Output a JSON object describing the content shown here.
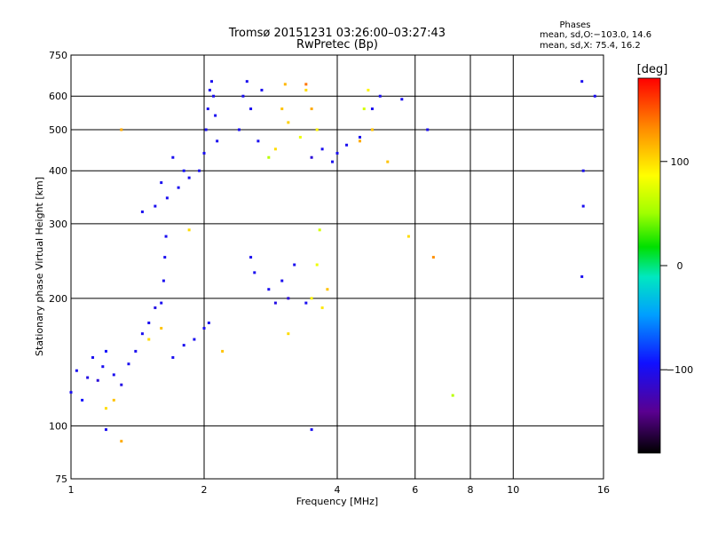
{
  "chart_data": {
    "type": "scatter",
    "title": "Tromsø 20151231 03:26:00–03:27:43",
    "subtitle": "RwPretec (Bp)",
    "stats_header": "Phases",
    "stats_o": "mean, sd,O:−103.0, 14.6",
    "stats_x": "mean, sd,X:  75.4, 16.2",
    "xlabel": "Frequency [MHz]",
    "ylabel": "Stationary phase Virtual Height [km]",
    "xscale": "log",
    "yscale": "log",
    "xlim": [
      1,
      16
    ],
    "ylim": [
      75,
      750
    ],
    "xticks": [
      1,
      2,
      4,
      6,
      8,
      10,
      16
    ],
    "xtick_labels": [
      "1",
      "2",
      "4",
      "6",
      "8",
      "10",
      "16"
    ],
    "yticks": [
      75,
      100,
      200,
      300,
      400,
      500,
      600,
      750
    ],
    "ytick_labels": [
      "75",
      "100",
      "200",
      "300",
      "400",
      "500",
      "600",
      "750"
    ],
    "grid": true,
    "colorbar": {
      "label": "[deg]",
      "range": [
        -180,
        180
      ],
      "ticks": [
        100,
        0,
        -100
      ],
      "tick_labels": [
        "100",
        "0",
        "−100"
      ]
    },
    "series": [
      {
        "points": [
          [
            1.0,
            120,
            -100
          ],
          [
            1.03,
            135,
            -100
          ],
          [
            1.06,
            115,
            -95
          ],
          [
            1.09,
            130,
            -105
          ],
          [
            1.12,
            145,
            -100
          ],
          [
            1.15,
            128,
            -110
          ],
          [
            1.18,
            138,
            -100
          ],
          [
            1.2,
            150,
            -95
          ],
          [
            1.25,
            132,
            -100
          ],
          [
            1.3,
            125,
            -105
          ],
          [
            1.35,
            140,
            -100
          ],
          [
            1.4,
            150,
            -100
          ],
          [
            1.45,
            165,
            -100
          ],
          [
            1.5,
            175,
            -100
          ],
          [
            1.55,
            190,
            -105
          ],
          [
            1.6,
            195,
            -100
          ],
          [
            1.62,
            220,
            -100
          ],
          [
            1.63,
            250,
            -100
          ],
          [
            1.64,
            280,
            -100
          ],
          [
            1.7,
            145,
            -100
          ],
          [
            1.8,
            155,
            -100
          ],
          [
            1.9,
            160,
            -100
          ],
          [
            2.0,
            170,
            -100
          ],
          [
            2.05,
            175,
            -100
          ],
          [
            1.45,
            320,
            -100
          ],
          [
            1.55,
            330,
            -100
          ],
          [
            1.65,
            345,
            -100
          ],
          [
            1.75,
            365,
            -100
          ],
          [
            1.85,
            385,
            -100
          ],
          [
            1.95,
            400,
            -100
          ],
          [
            2.0,
            440,
            -100
          ],
          [
            2.02,
            500,
            -100
          ],
          [
            2.04,
            560,
            -100
          ],
          [
            2.06,
            620,
            -100
          ],
          [
            2.08,
            650,
            -100
          ],
          [
            2.1,
            600,
            -100
          ],
          [
            2.12,
            540,
            -100
          ],
          [
            2.14,
            470,
            -100
          ],
          [
            1.7,
            430,
            -100
          ],
          [
            1.8,
            400,
            -95
          ],
          [
            1.6,
            375,
            -100
          ],
          [
            2.4,
            500,
            -100
          ],
          [
            2.45,
            600,
            -100
          ],
          [
            2.5,
            650,
            -100
          ],
          [
            2.55,
            560,
            -100
          ],
          [
            2.65,
            470,
            -100
          ],
          [
            2.7,
            620,
            -100
          ],
          [
            2.55,
            250,
            -100
          ],
          [
            2.6,
            230,
            -100
          ],
          [
            2.8,
            210,
            -100
          ],
          [
            2.9,
            195,
            -105
          ],
          [
            3.0,
            220,
            -100
          ],
          [
            3.1,
            200,
            -110
          ],
          [
            3.2,
            240,
            -100
          ],
          [
            3.4,
            195,
            -100
          ],
          [
            3.5,
            430,
            -110
          ],
          [
            3.7,
            450,
            -100
          ],
          [
            3.9,
            420,
            -100
          ],
          [
            4.0,
            440,
            -100
          ],
          [
            4.2,
            460,
            -100
          ],
          [
            4.5,
            480,
            -100
          ],
          [
            4.8,
            560,
            -100
          ],
          [
            5.0,
            600,
            -100
          ],
          [
            5.6,
            590,
            -100
          ],
          [
            6.4,
            500,
            -100
          ],
          [
            1.2,
            98,
            -100
          ],
          [
            3.5,
            98,
            -100
          ],
          [
            14.3,
            650,
            -100
          ],
          [
            14.4,
            400,
            -100
          ],
          [
            14.4,
            330,
            -100
          ],
          [
            15.3,
            600,
            -100
          ],
          [
            14.3,
            225,
            -100
          ]
        ]
      },
      {
        "points": [
          [
            1.3,
            500,
            120
          ],
          [
            1.2,
            110,
            100
          ],
          [
            1.25,
            115,
            110
          ],
          [
            1.5,
            160,
            100
          ],
          [
            1.6,
            170,
            110
          ],
          [
            1.85,
            290,
            100
          ],
          [
            2.2,
            150,
            110
          ],
          [
            2.9,
            450,
            100
          ],
          [
            3.0,
            560,
            110
          ],
          [
            3.05,
            640,
            115
          ],
          [
            3.1,
            520,
            105
          ],
          [
            3.3,
            480,
            80
          ],
          [
            3.4,
            620,
            100
          ],
          [
            3.5,
            560,
            120
          ],
          [
            3.6,
            500,
            90
          ],
          [
            3.65,
            290,
            70
          ],
          [
            3.6,
            240,
            80
          ],
          [
            3.5,
            200,
            90
          ],
          [
            3.7,
            190,
            95
          ],
          [
            3.8,
            210,
            110
          ],
          [
            3.1,
            165,
            100
          ],
          [
            4.6,
            560,
            70
          ],
          [
            4.7,
            620,
            90
          ],
          [
            4.8,
            500,
            110
          ],
          [
            5.2,
            420,
            110
          ],
          [
            5.8,
            280,
            100
          ],
          [
            6.6,
            250,
            130
          ],
          [
            1.3,
            92,
            120
          ],
          [
            7.3,
            118,
            60
          ],
          [
            2.8,
            430,
            60
          ],
          [
            3.4,
            640,
            140
          ],
          [
            4.5,
            470,
            120
          ]
        ]
      }
    ]
  }
}
